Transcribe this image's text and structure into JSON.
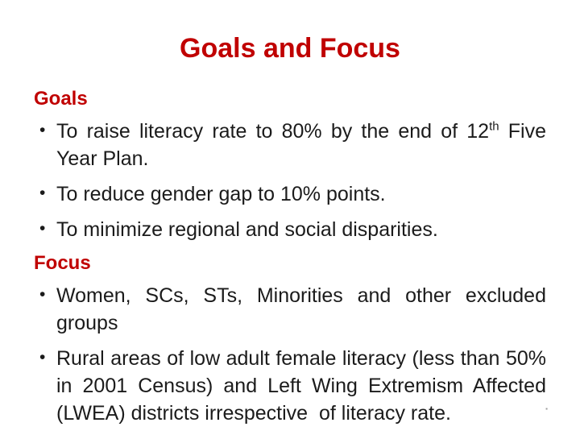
{
  "slide": {
    "title": "Goals and Focus",
    "bullet_glyph": "•",
    "goals": {
      "heading": "Goals",
      "bullets": [
        {
          "pre": "To raise literacy rate to 80% by the end of 12",
          "sup": "th",
          "post": " Five Year Plan."
        },
        {
          "text": "To reduce gender gap to 10% points."
        },
        {
          "text": "To minimize regional and social disparities."
        }
      ]
    },
    "focus": {
      "heading": "Focus",
      "bullets": [
        {
          "text": "Women, SCs, STs, Minorities and other excluded groups"
        },
        {
          "text": "Rural areas of low adult female literacy (less than 50% in 2001 Census) and Left Wing Extremism Affected (LWEA) districts irrespective  of literacy rate."
        }
      ]
    },
    "corner_mark": "▪"
  },
  "colors": {
    "accent_red": "#C00000",
    "body_text": "#1b1b1b",
    "background": "#FFFFFF"
  }
}
